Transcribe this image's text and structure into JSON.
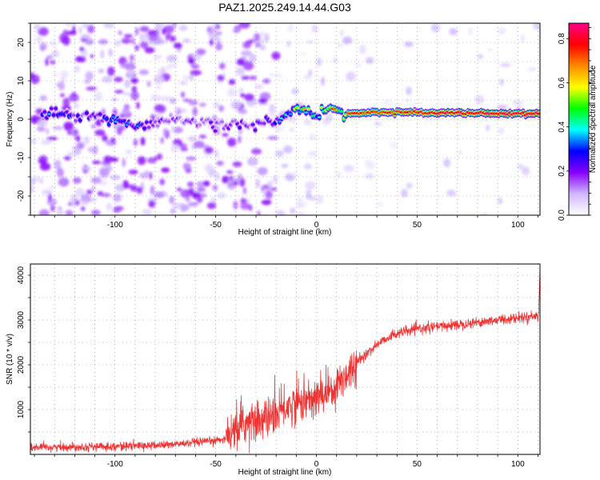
{
  "title": "PAZ1.2025.249.14.44.G03",
  "chart_data": [
    {
      "type": "heatmap",
      "xlabel": "Height of straight line (km)",
      "ylabel": "Frequency (Hz)",
      "xlim": [
        -142,
        111
      ],
      "ylim": [
        -25,
        25
      ],
      "xticks": [
        -100,
        -50,
        0,
        50,
        100
      ],
      "xtick_labels": [
        "-100",
        "-50",
        "0",
        "50",
        "100"
      ],
      "yticks": [
        -20,
        -10,
        0,
        10,
        20
      ],
      "ytick_labels": [
        "-20",
        "-10",
        "0",
        "10",
        "20"
      ],
      "grid": true,
      "colorbar": {
        "label": "Normalized spectral amplitude",
        "range": [
          0.0,
          0.87
        ],
        "ticks": [
          0.0,
          0.2,
          0.4,
          0.6,
          0.8
        ],
        "tick_labels": [
          "0.0",
          "0.2",
          "0.4",
          "0.6",
          "0.8"
        ],
        "colors": [
          "#ffffff",
          "#d0b8ff",
          "#8800ff",
          "#0000ff",
          "#00ffff",
          "#00ff00",
          "#ffff00",
          "#ff8800",
          "#ff0000",
          "#ff0088"
        ]
      },
      "ridge": {
        "x": [
          -130,
          -110,
          -100,
          -90,
          -80,
          -70,
          -60,
          -50,
          -40,
          -30,
          -25,
          -20,
          -15,
          -10,
          -5,
          0,
          5,
          10,
          20,
          30,
          50,
          70,
          90,
          111
        ],
        "frequency": [
          1.5,
          0.5,
          0.0,
          -2.0,
          -1.5,
          0.0,
          -1.0,
          -1.5,
          -1.5,
          -1.5,
          -0.5,
          -1.0,
          1.0,
          2.5,
          3.0,
          1.0,
          2.5,
          2.0,
          1.5,
          1.8,
          1.8,
          1.7,
          1.5,
          1.5
        ],
        "amplitude": [
          0.3,
          0.2,
          0.35,
          0.3,
          0.2,
          0.15,
          0.15,
          0.2,
          0.2,
          0.2,
          0.25,
          0.3,
          0.4,
          0.55,
          0.6,
          0.35,
          0.6,
          0.7,
          0.8,
          0.75,
          0.8,
          0.85,
          0.85,
          0.85
        ]
      }
    },
    {
      "type": "line",
      "xlabel": "Height of straight line (km)",
      "ylabel": "SNR (10 * v/v)",
      "xlim": [
        -142,
        111
      ],
      "ylim": [
        0,
        4250
      ],
      "xticks": [
        -100,
        -50,
        0,
        50,
        100
      ],
      "xtick_labels": [
        "-100",
        "-50",
        "0",
        "50",
        "100"
      ],
      "yticks": [
        1000,
        2000,
        3000,
        4000
      ],
      "ytick_labels": [
        "1000",
        "2000",
        "3000",
        "4000"
      ],
      "grid": true,
      "color": "#ee3333",
      "series": [
        {
          "x": [
            -142,
            -130,
            -120,
            -110,
            -100,
            -90,
            -80,
            -70,
            -60,
            -55,
            -50,
            -45,
            -40,
            -35,
            -30,
            -25,
            -20,
            -15,
            -10,
            -5,
            0,
            5,
            10,
            15,
            20,
            25,
            30,
            35,
            40,
            50,
            60,
            70,
            80,
            90,
            100,
            111
          ],
          "y": [
            150,
            160,
            170,
            170,
            180,
            190,
            200,
            230,
            260,
            280,
            310,
            360,
            520,
            700,
            750,
            800,
            900,
            1050,
            1150,
            1200,
            1250,
            1400,
            1550,
            1800,
            2050,
            2250,
            2450,
            2600,
            2700,
            2800,
            2850,
            2900,
            2950,
            3000,
            3050,
            3100
          ]
        }
      ]
    }
  ]
}
